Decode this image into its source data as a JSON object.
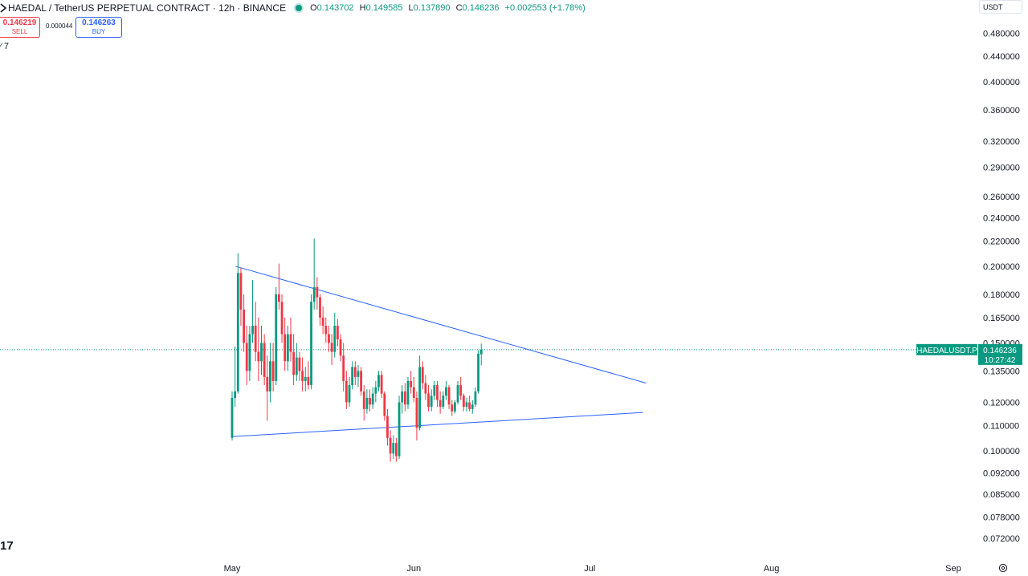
{
  "header": {
    "symbol_title": "HAEDAL / TetherUS PERPETUAL CONTRACT · 12h · BINANCE",
    "ohlc": [
      {
        "k": "O",
        "v": "0.143702"
      },
      {
        "k": "H",
        "v": "0.149585"
      },
      {
        "k": "L",
        "v": "0.137890"
      },
      {
        "k": "C",
        "v": "0.146236"
      },
      {
        "k": "",
        "v": "+0.002553 (+1.78%)"
      }
    ]
  },
  "trade": {
    "sell_price": "0.146219",
    "sell_label": "SELL",
    "spread": "0.000044",
    "buy_price": "0.146263",
    "buy_label": "BUY"
  },
  "indicators_label": "⁄ 7",
  "currency": "USDT",
  "logo_text": "17",
  "colors": {
    "up": "#089981",
    "down": "#f23645",
    "trend": "#2962ff",
    "price_line": "#089981"
  },
  "chart_data": {
    "type": "candlestick",
    "title": "HAEDAL / TetherUS PERPETUAL CONTRACT · 12h · BINANCE",
    "yscale": "log",
    "ylim": [
      0.068,
      0.515
    ],
    "y_ticks": [
      "0.480000",
      "0.440000",
      "0.400000",
      "0.360000",
      "0.320000",
      "0.290000",
      "0.260000",
      "0.240000",
      "0.220000",
      "0.200000",
      "0.180000",
      "0.165000",
      "0.150000",
      "0.135000",
      "0.120000",
      "0.110000",
      "0.100000",
      "0.092000",
      "0.085000",
      "0.078000",
      "0.072000"
    ],
    "x_ticks": [
      "May",
      "Jun",
      "Jul",
      "Aug",
      "Sep"
    ],
    "last_price": {
      "symbol": "HAEDALUSDT.P",
      "price": "0.146236",
      "countdown": "10:27:42",
      "value": 0.146236
    },
    "trendlines": [
      {
        "name": "upper",
        "from": {
          "day": 0.6,
          "price": 0.2
        },
        "to": {
          "day": 70.6,
          "price": 0.129
        }
      },
      {
        "name": "lower",
        "from": {
          "day": -0.1,
          "price": 0.1055
        },
        "to": {
          "day": 70.1,
          "price": 0.1155
        }
      }
    ],
    "candles": [
      [
        0.105,
        0.125,
        0.104,
        0.122
      ],
      [
        0.122,
        0.148,
        0.118,
        0.125
      ],
      [
        0.125,
        0.21,
        0.124,
        0.195
      ],
      [
        0.195,
        0.199,
        0.16,
        0.17
      ],
      [
        0.17,
        0.18,
        0.145,
        0.15
      ],
      [
        0.15,
        0.16,
        0.128,
        0.135
      ],
      [
        0.135,
        0.16,
        0.13,
        0.155
      ],
      [
        0.155,
        0.19,
        0.15,
        0.16
      ],
      [
        0.16,
        0.175,
        0.14,
        0.145
      ],
      [
        0.145,
        0.165,
        0.13,
        0.14
      ],
      [
        0.14,
        0.16,
        0.133,
        0.15
      ],
      [
        0.15,
        0.155,
        0.128,
        0.132
      ],
      [
        0.132,
        0.143,
        0.112,
        0.125
      ],
      [
        0.125,
        0.15,
        0.12,
        0.14
      ],
      [
        0.14,
        0.15,
        0.125,
        0.13
      ],
      [
        0.13,
        0.185,
        0.128,
        0.18
      ],
      [
        0.18,
        0.202,
        0.17,
        0.175
      ],
      [
        0.175,
        0.18,
        0.15,
        0.155
      ],
      [
        0.155,
        0.165,
        0.135,
        0.14
      ],
      [
        0.14,
        0.16,
        0.135,
        0.155
      ],
      [
        0.155,
        0.165,
        0.14,
        0.145
      ],
      [
        0.145,
        0.155,
        0.128,
        0.133
      ],
      [
        0.133,
        0.15,
        0.13,
        0.142
      ],
      [
        0.142,
        0.145,
        0.13,
        0.135
      ],
      [
        0.135,
        0.142,
        0.125,
        0.13
      ],
      [
        0.13,
        0.137,
        0.125,
        0.132
      ],
      [
        0.132,
        0.14,
        0.126,
        0.128
      ],
      [
        0.128,
        0.18,
        0.126,
        0.175
      ],
      [
        0.175,
        0.222,
        0.17,
        0.185
      ],
      [
        0.185,
        0.192,
        0.17,
        0.178
      ],
      [
        0.178,
        0.18,
        0.16,
        0.165
      ],
      [
        0.165,
        0.172,
        0.155,
        0.16
      ],
      [
        0.16,
        0.165,
        0.15,
        0.155
      ],
      [
        0.155,
        0.16,
        0.145,
        0.15
      ],
      [
        0.15,
        0.155,
        0.138,
        0.145
      ],
      [
        0.145,
        0.168,
        0.142,
        0.16
      ],
      [
        0.16,
        0.164,
        0.148,
        0.152
      ],
      [
        0.152,
        0.155,
        0.14,
        0.143
      ],
      [
        0.143,
        0.15,
        0.125,
        0.13
      ],
      [
        0.13,
        0.135,
        0.117,
        0.12
      ],
      [
        0.12,
        0.132,
        0.118,
        0.128
      ],
      [
        0.128,
        0.14,
        0.126,
        0.137
      ],
      [
        0.137,
        0.14,
        0.128,
        0.132
      ],
      [
        0.132,
        0.138,
        0.127,
        0.135
      ],
      [
        0.135,
        0.137,
        0.123,
        0.125
      ],
      [
        0.125,
        0.128,
        0.112,
        0.117
      ],
      [
        0.117,
        0.126,
        0.115,
        0.122
      ],
      [
        0.122,
        0.126,
        0.116,
        0.119
      ],
      [
        0.119,
        0.127,
        0.117,
        0.124
      ],
      [
        0.124,
        0.13,
        0.12,
        0.127
      ],
      [
        0.127,
        0.135,
        0.125,
        0.133
      ],
      [
        0.133,
        0.135,
        0.122,
        0.124
      ],
      [
        0.124,
        0.125,
        0.112,
        0.114
      ],
      [
        0.114,
        0.117,
        0.102,
        0.105
      ],
      [
        0.105,
        0.108,
        0.096,
        0.099
      ],
      [
        0.099,
        0.106,
        0.097,
        0.103
      ],
      [
        0.103,
        0.105,
        0.096,
        0.098
      ],
      [
        0.098,
        0.123,
        0.097,
        0.12
      ],
      [
        0.12,
        0.128,
        0.115,
        0.125
      ],
      [
        0.125,
        0.129,
        0.116,
        0.119
      ],
      [
        0.119,
        0.132,
        0.117,
        0.13
      ],
      [
        0.13,
        0.135,
        0.124,
        0.127
      ],
      [
        0.127,
        0.132,
        0.12,
        0.122
      ],
      [
        0.122,
        0.125,
        0.104,
        0.109
      ],
      [
        0.109,
        0.143,
        0.108,
        0.137
      ],
      [
        0.137,
        0.14,
        0.126,
        0.129
      ],
      [
        0.129,
        0.133,
        0.121,
        0.124
      ],
      [
        0.124,
        0.128,
        0.116,
        0.118
      ],
      [
        0.118,
        0.126,
        0.116,
        0.123
      ],
      [
        0.123,
        0.13,
        0.121,
        0.128
      ],
      [
        0.128,
        0.13,
        0.118,
        0.121
      ],
      [
        0.121,
        0.125,
        0.115,
        0.118
      ],
      [
        0.118,
        0.125,
        0.117,
        0.123
      ],
      [
        0.123,
        0.13,
        0.121,
        0.127
      ],
      [
        0.127,
        0.128,
        0.117,
        0.119
      ],
      [
        0.119,
        0.121,
        0.114,
        0.116
      ],
      [
        0.116,
        0.121,
        0.115,
        0.12
      ],
      [
        0.12,
        0.13,
        0.119,
        0.128
      ],
      [
        0.128,
        0.132,
        0.121,
        0.123
      ],
      [
        0.123,
        0.124,
        0.116,
        0.118
      ],
      [
        0.118,
        0.122,
        0.116,
        0.12
      ],
      [
        0.12,
        0.123,
        0.116,
        0.117
      ],
      [
        0.117,
        0.121,
        0.115,
        0.119
      ],
      [
        0.119,
        0.127,
        0.118,
        0.125
      ],
      [
        0.125,
        0.146,
        0.124,
        0.144
      ],
      [
        0.1437,
        0.1496,
        0.1379,
        0.1462
      ]
    ]
  }
}
